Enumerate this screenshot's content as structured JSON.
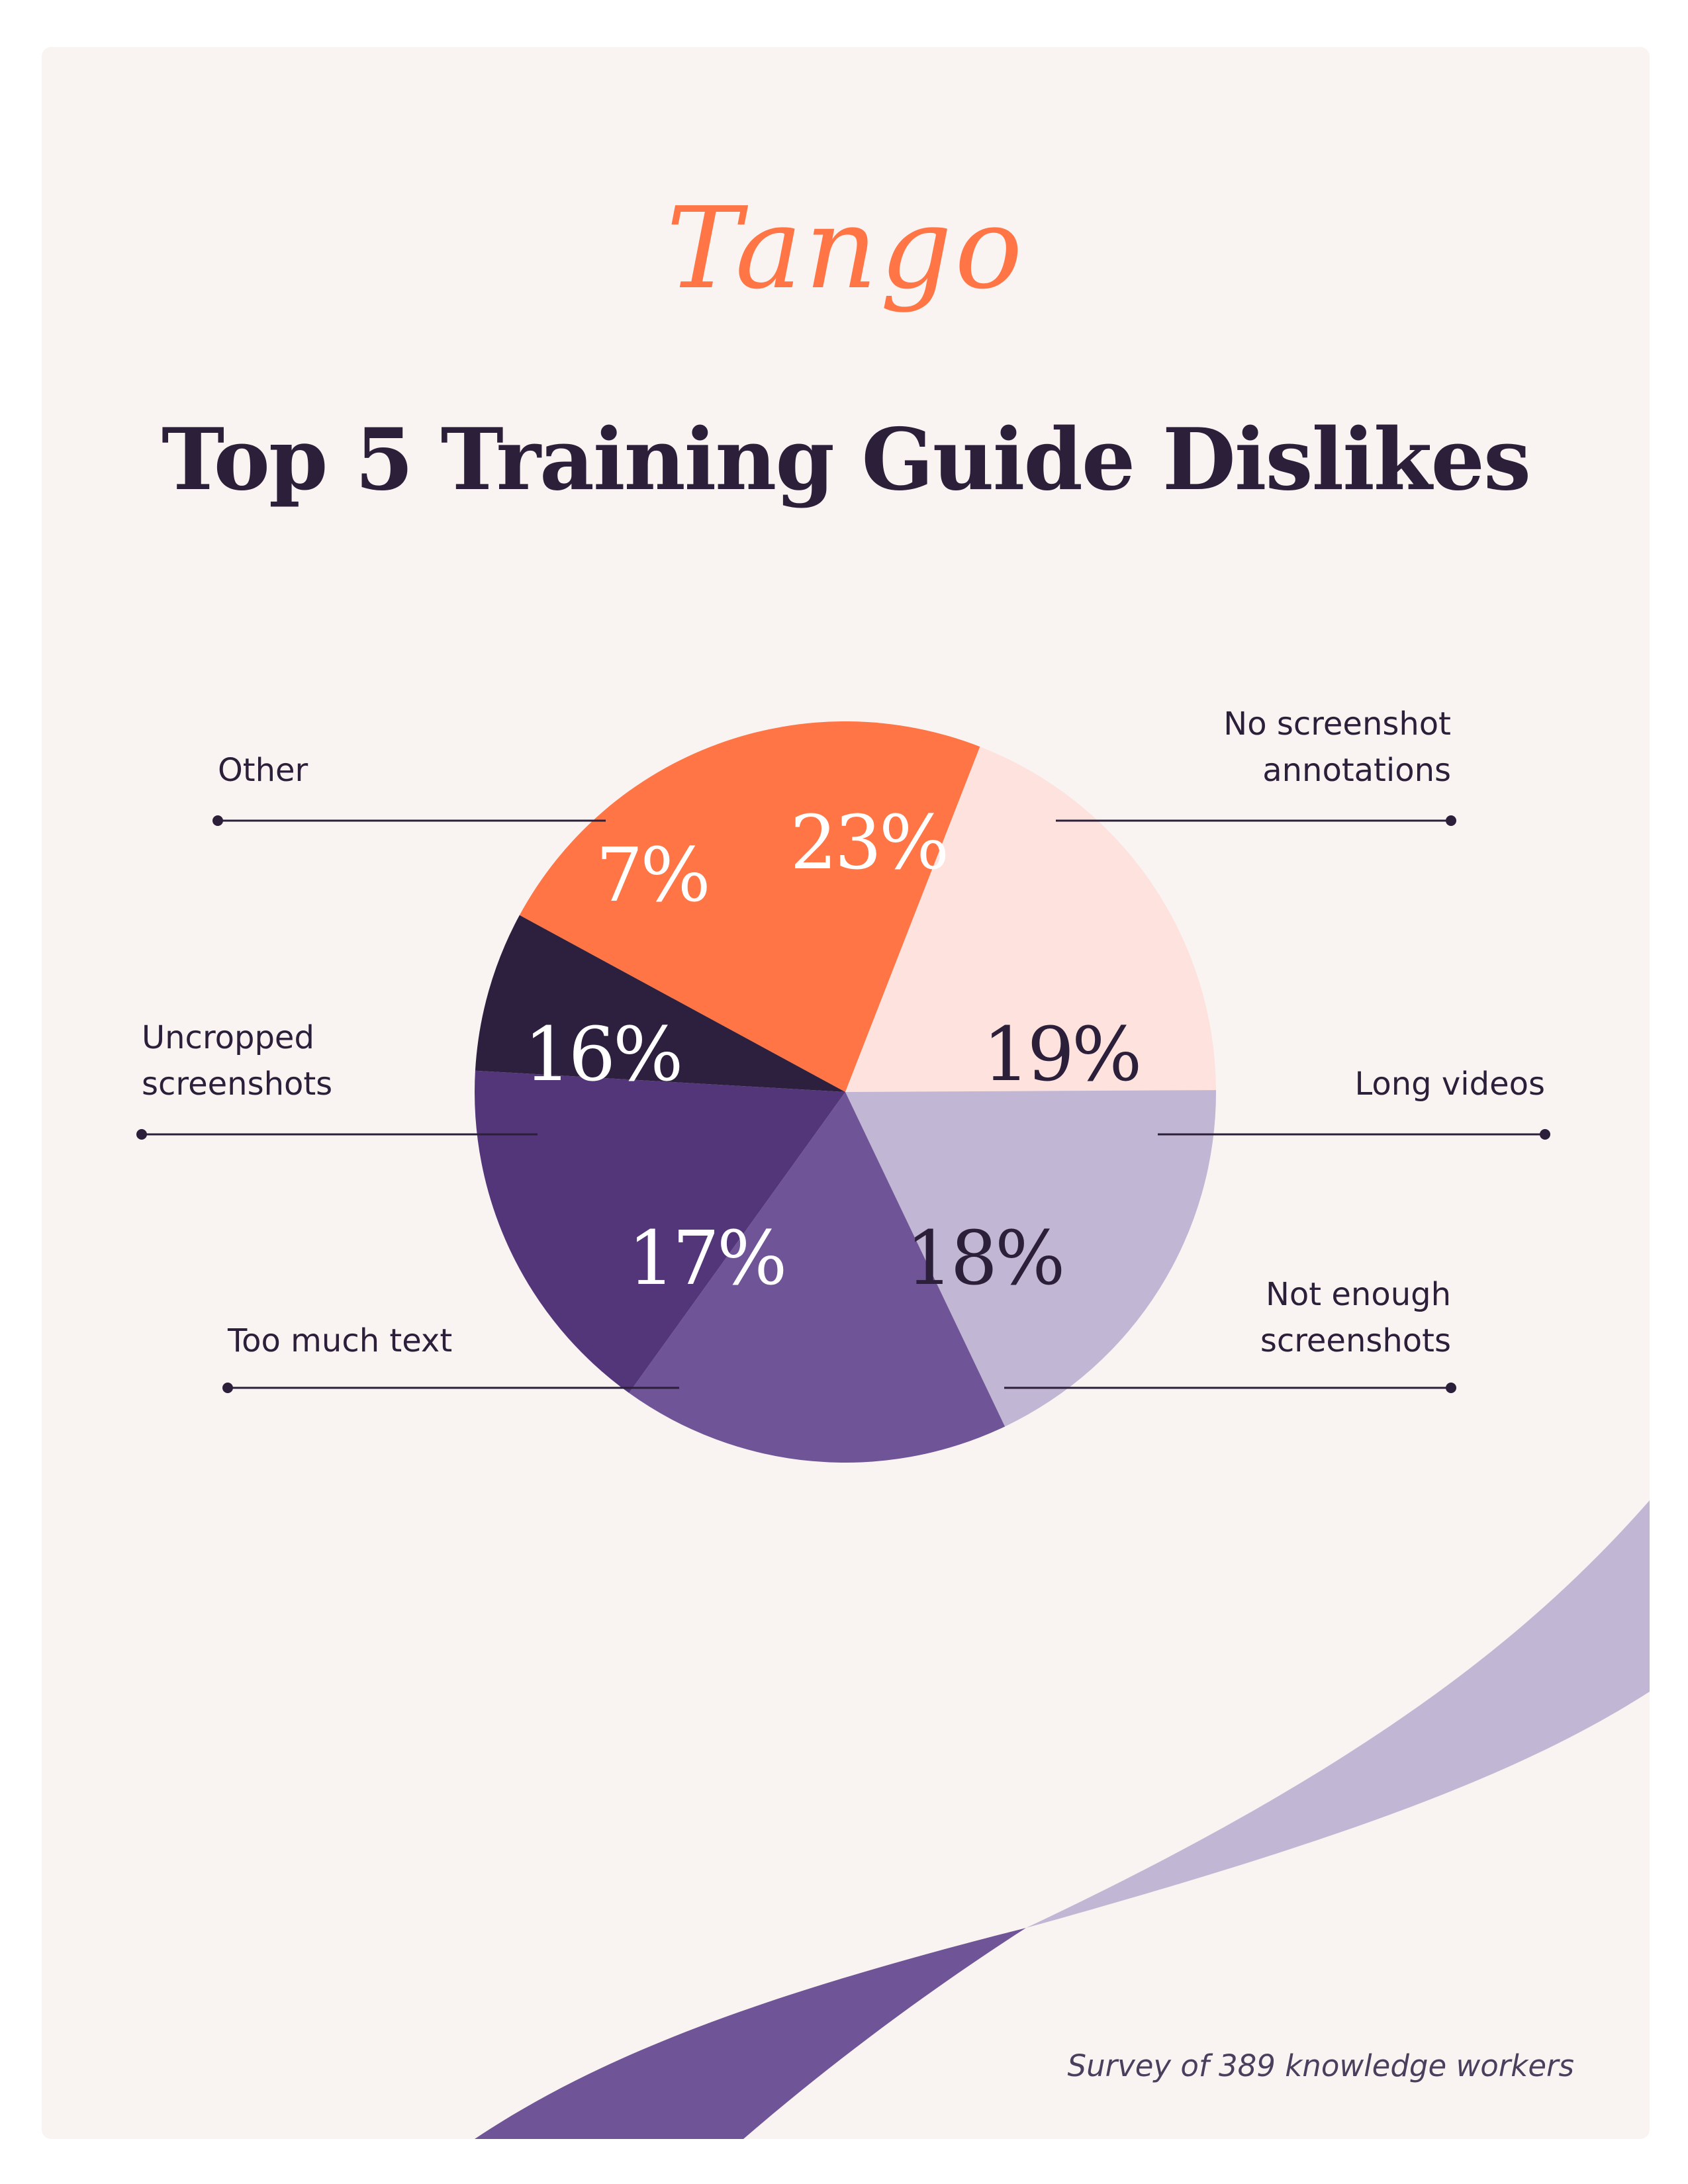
{
  "brand": {
    "logo_text": "Tango"
  },
  "header": {
    "title": "Top 5 Training Guide Dislikes"
  },
  "footer": {
    "note": "Survey of 389 knowledge workers"
  },
  "chart_data": {
    "type": "pie",
    "title": "Top 5 Training Guide Dislikes",
    "slices": [
      {
        "label": "No screenshot annotations",
        "label_lines": [
          "No screenshot",
          "annotations"
        ],
        "value": 23,
        "value_label": "23%",
        "color": "#ff7545",
        "text_color": "#ffffff"
      },
      {
        "label": "Long videos",
        "label_lines": [
          "Long videos"
        ],
        "value": 19,
        "value_label": "19%",
        "color": "#fde2de",
        "text_color": "#2b1f3a"
      },
      {
        "label": "Not enough screenshots",
        "label_lines": [
          "Not enough",
          "screenshots"
        ],
        "value": 18,
        "value_label": "18%",
        "color": "#c1b6d3",
        "text_color": "#2b1f3a"
      },
      {
        "label": "Too much text",
        "label_lines": [
          "Too much text"
        ],
        "value": 17,
        "value_label": "17%",
        "color": "#6f5497",
        "text_color": "#ffffff"
      },
      {
        "label": "Uncropped screenshots",
        "label_lines": [
          "Uncropped",
          "screenshots"
        ],
        "value": 16,
        "value_label": "16%",
        "color": "#533679",
        "text_color": "#ffffff"
      },
      {
        "label": "Other",
        "label_lines": [
          "Other"
        ],
        "value": 7,
        "value_label": "7%",
        "color": "#2d1f3e",
        "text_color": "#ffffff"
      }
    ],
    "legend": "none",
    "decoration_colors": {
      "band_light": "#c1b6d3",
      "band_dark": "#6f5497",
      "leader_line": "#2b1f3a"
    }
  }
}
